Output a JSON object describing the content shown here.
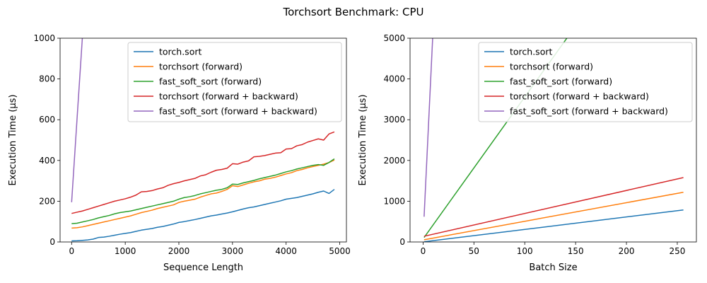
{
  "figure": {
    "title": "Torchsort Benchmark: CPU"
  },
  "colors": {
    "torch.sort": "#1f77b4",
    "torchsort (forward)": "#ff7f0e",
    "fast_soft_sort (forward)": "#2ca02c",
    "torchsort (forward + backward)": "#d62728",
    "fast_soft_sort (forward + backward)": "#9467bd"
  },
  "chart_data": [
    {
      "type": "line",
      "xlabel": "Sequence Length",
      "ylabel": "Execution Time (µs)",
      "xlim": [
        -215,
        5125
      ],
      "ylim": [
        0,
        1000
      ],
      "xticks": [
        0,
        1000,
        2000,
        3000,
        4000,
        5000
      ],
      "yticks": [
        0,
        200,
        400,
        600,
        800,
        1000
      ],
      "grid": false,
      "legend": "top-right",
      "series": [
        {
          "name": "torch.sort",
          "x": [
            0,
            100,
            200,
            300,
            400,
            500,
            600,
            700,
            800,
            900,
            1000,
            1100,
            1200,
            1300,
            1400,
            1500,
            1600,
            1700,
            1800,
            1900,
            2000,
            2100,
            2200,
            2300,
            2400,
            2500,
            2600,
            2700,
            2800,
            2900,
            3000,
            3100,
            3200,
            3300,
            3400,
            3500,
            3600,
            3700,
            3800,
            3900,
            4000,
            4100,
            4200,
            4300,
            4400,
            4500,
            4600,
            4700,
            4800,
            4900
          ],
          "y": [
            5,
            6,
            8,
            10,
            14,
            22,
            24,
            28,
            33,
            38,
            42,
            46,
            52,
            58,
            62,
            66,
            72,
            76,
            82,
            88,
            96,
            100,
            105,
            110,
            116,
            122,
            128,
            132,
            137,
            142,
            148,
            155,
            162,
            168,
            172,
            178,
            184,
            190,
            196,
            202,
            210,
            214,
            218,
            224,
            230,
            236,
            244,
            250,
            238,
            258
          ]
        },
        {
          "name": "torchsort (forward)",
          "x": [
            0,
            100,
            200,
            300,
            400,
            500,
            600,
            700,
            800,
            900,
            1000,
            1100,
            1200,
            1300,
            1400,
            1500,
            1600,
            1700,
            1800,
            1900,
            2000,
            2100,
            2200,
            2300,
            2400,
            2500,
            2600,
            2700,
            2800,
            2900,
            3000,
            3100,
            3200,
            3300,
            3400,
            3500,
            3600,
            3700,
            3800,
            3900,
            4000,
            4100,
            4200,
            4300,
            4400,
            4500,
            4600,
            4700,
            4800,
            4900
          ],
          "y": [
            68,
            70,
            74,
            80,
            86,
            92,
            98,
            104,
            110,
            116,
            122,
            128,
            136,
            144,
            150,
            156,
            164,
            170,
            176,
            182,
            194,
            200,
            205,
            210,
            220,
            228,
            236,
            240,
            248,
            258,
            276,
            272,
            280,
            288,
            295,
            300,
            308,
            312,
            318,
            326,
            334,
            340,
            350,
            356,
            364,
            370,
            376,
            382,
            390,
            402
          ]
        },
        {
          "name": "fast_soft_sort (forward)",
          "x": [
            0,
            100,
            200,
            300,
            400,
            500,
            600,
            700,
            800,
            900,
            1000,
            1100,
            1200,
            1300,
            1400,
            1500,
            1600,
            1700,
            1800,
            1900,
            2000,
            2100,
            2200,
            2300,
            2400,
            2500,
            2600,
            2700,
            2800,
            2900,
            3000,
            3100,
            3200,
            3300,
            3400,
            3500,
            3600,
            3700,
            3800,
            3900,
            4000,
            4100,
            4200,
            4300,
            4400,
            4500,
            4600,
            4700,
            4800,
            4900
          ],
          "y": [
            90,
            92,
            98,
            104,
            110,
            118,
            124,
            130,
            138,
            144,
            148,
            152,
            158,
            164,
            170,
            176,
            182,
            188,
            194,
            200,
            210,
            218,
            222,
            228,
            236,
            242,
            248,
            254,
            258,
            266,
            284,
            282,
            290,
            296,
            302,
            310,
            316,
            322,
            328,
            336,
            344,
            350,
            358,
            364,
            370,
            376,
            380,
            376,
            390,
            408
          ]
        },
        {
          "name": "torchsort (forward + backward)",
          "x": [
            0,
            100,
            200,
            300,
            400,
            500,
            600,
            700,
            800,
            900,
            1000,
            1100,
            1200,
            1300,
            1400,
            1500,
            1600,
            1700,
            1800,
            1900,
            2000,
            2100,
            2200,
            2300,
            2400,
            2500,
            2600,
            2700,
            2800,
            2900,
            3000,
            3100,
            3200,
            3300,
            3400,
            3500,
            3600,
            3700,
            3800,
            3900,
            4000,
            4100,
            4200,
            4300,
            4400,
            4500,
            4600,
            4700,
            4800,
            4900
          ],
          "y": [
            140,
            146,
            152,
            160,
            168,
            176,
            184,
            192,
            200,
            206,
            212,
            220,
            230,
            246,
            248,
            252,
            260,
            266,
            278,
            286,
            292,
            300,
            306,
            312,
            324,
            330,
            342,
            352,
            356,
            362,
            384,
            382,
            392,
            398,
            418,
            420,
            424,
            430,
            436,
            438,
            456,
            458,
            472,
            478,
            490,
            498,
            506,
            500,
            530,
            540
          ]
        },
        {
          "name": "fast_soft_sort (forward + backward)",
          "x": [
            0,
            100,
            200,
            300
          ],
          "y": [
            195,
            600,
            1000,
            1400
          ]
        }
      ]
    },
    {
      "type": "line",
      "xlabel": "Batch Size",
      "ylabel": "Execution Time (µs)",
      "xlim": [
        -12.8,
        268.8
      ],
      "ylim": [
        0,
        5000
      ],
      "xticks": [
        0,
        50,
        100,
        150,
        200,
        250
      ],
      "yticks": [
        0,
        1000,
        2000,
        3000,
        4000,
        5000
      ],
      "grid": false,
      "legend": "top-right",
      "series": [
        {
          "name": "torch.sort",
          "x": [
            1,
            256
          ],
          "y": [
            5,
            785
          ]
        },
        {
          "name": "torchsort (forward)",
          "x": [
            1,
            256
          ],
          "y": [
            55,
            1220
          ]
        },
        {
          "name": "fast_soft_sort (forward)",
          "x": [
            1,
            150
          ],
          "y": [
            110,
            5300
          ]
        },
        {
          "name": "torchsort (forward + backward)",
          "x": [
            1,
            256
          ],
          "y": [
            140,
            1580
          ]
        },
        {
          "name": "fast_soft_sort (forward + backward)",
          "x": [
            1,
            10
          ],
          "y": [
            620,
            5300
          ]
        }
      ]
    }
  ]
}
